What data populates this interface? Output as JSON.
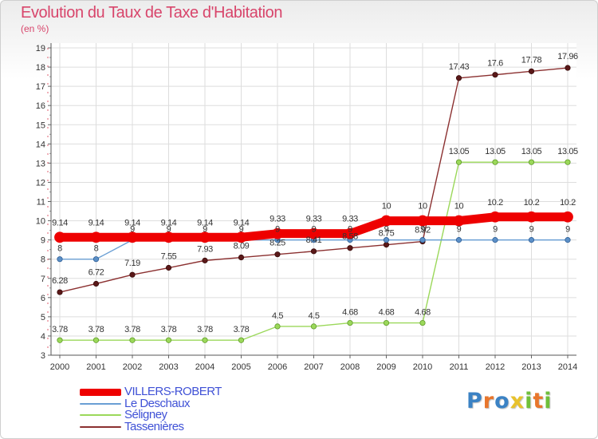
{
  "title": "Evolution du Taux de Taxe d'Habitation",
  "subtitle": "(en %)",
  "logo": {
    "letters": [
      "P",
      "r",
      "o",
      "x",
      "i",
      "t",
      "i"
    ],
    "colors": [
      "#3b82c4",
      "#e8762c",
      "#3b82c4",
      "#e8c22c",
      "#6fbf3a",
      "#e8762c",
      "#6fbf3a"
    ]
  },
  "chart_data": {
    "type": "line",
    "title": "Evolution du Taux de Taxe d'Habitation",
    "ylabel": "(en %)",
    "xlabel": "",
    "ylim": [
      3,
      19
    ],
    "yticks": [
      "3",
      "4",
      "5",
      "6",
      "7",
      "8",
      "9",
      "10",
      "11",
      "12",
      "13",
      "14",
      "15",
      "16",
      "17",
      "18",
      "19"
    ],
    "x": [
      "2000",
      "2001",
      "2002",
      "2003",
      "2004",
      "2005",
      "2006",
      "2007",
      "2008",
      "2009",
      "2010",
      "2011",
      "2012",
      "2013",
      "2014"
    ],
    "grid": true,
    "legend_position": "bottom-left",
    "series": [
      {
        "name": "VILLERS-ROBERT",
        "color": "#ee0000",
        "values": [
          9.14,
          9.14,
          9.14,
          9.14,
          9.14,
          9.14,
          9.33,
          9.33,
          9.33,
          10,
          10,
          10,
          10.2,
          10.2,
          10.2
        ],
        "labels": [
          "9.14",
          "9.14",
          "9.14",
          "9.14",
          "9.14",
          "9.14",
          "9.33",
          "9.33",
          "9.33",
          "10",
          "10",
          "10",
          "10.2",
          "10.2",
          "10.2"
        ]
      },
      {
        "name": "Le Deschaux",
        "color": "#6a9fd4",
        "values": [
          8,
          8,
          9,
          9,
          9,
          9,
          9,
          9,
          9,
          9,
          9,
          9,
          9,
          9,
          9
        ],
        "labels": [
          "8",
          "8",
          "9",
          "9",
          "9",
          "9",
          "9",
          "9",
          "9",
          "9",
          "9",
          "9",
          "9",
          "9",
          "9"
        ]
      },
      {
        "name": "Séligney",
        "color": "#9bd85a",
        "values": [
          3.78,
          3.78,
          3.78,
          3.78,
          3.78,
          3.78,
          4.5,
          4.5,
          4.68,
          4.68,
          4.68,
          13.05,
          13.05,
          13.05,
          13.05
        ],
        "labels": [
          "3.78",
          "3.78",
          "3.78",
          "3.78",
          "3.78",
          "3.78",
          "4.5",
          "4.5",
          "4.68",
          "4.68",
          "4.68",
          "13.05",
          "13.05",
          "13.05",
          "13.05"
        ]
      },
      {
        "name": "Tassenières",
        "color": "#8b3030",
        "values": [
          6.28,
          6.72,
          7.19,
          7.55,
          7.93,
          8.09,
          8.25,
          8.41,
          8.58,
          8.75,
          8.92,
          17.43,
          17.6,
          17.78,
          17.96
        ],
        "labels": [
          "6.28",
          "6.72",
          "7.19",
          "7.55",
          "7.93",
          "8.09",
          "8.25",
          "8.41",
          "8.58",
          "8.75",
          "8.92",
          "17.43",
          "17.6",
          "17.78",
          "17.96"
        ]
      }
    ]
  }
}
